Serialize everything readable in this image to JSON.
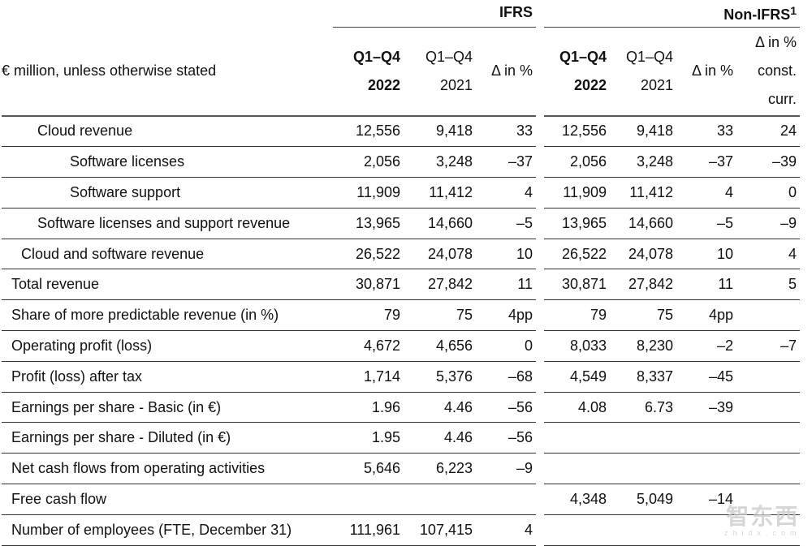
{
  "header": {
    "ifrs": "IFRS",
    "non_ifrs": "Non-IFRS",
    "non_ifrs_footnote": "1",
    "unit_label": "€ million, unless otherwise stated",
    "period_2022_line1": "Q1–Q4",
    "period_2022_line2": "2022",
    "period_2021_line1": "Q1–Q4",
    "period_2021_line2": "2021",
    "delta": "Δ in %",
    "delta_cc_line1": "Δ in %",
    "delta_cc_line2": "const.",
    "delta_cc_line3": "curr."
  },
  "rows": [
    {
      "label": "Cloud revenue",
      "indent": 2,
      "values": [
        "12,556",
        "9,418",
        "33",
        "12,556",
        "9,418",
        "33",
        "24"
      ]
    },
    {
      "label": "Software licenses",
      "indent": 3,
      "values": [
        "2,056",
        "3,248",
        "–37",
        "2,056",
        "3,248",
        "–37",
        "–39"
      ]
    },
    {
      "label": "Software support",
      "indent": 3,
      "values": [
        "11,909",
        "11,412",
        "4",
        "11,909",
        "11,412",
        "4",
        "0"
      ]
    },
    {
      "label": "Software licenses and support revenue",
      "indent": 2,
      "values": [
        "13,965",
        "14,660",
        "–5",
        "13,965",
        "14,660",
        "–5",
        "–9"
      ]
    },
    {
      "label": "Cloud and software revenue",
      "indent": 1,
      "values": [
        "26,522",
        "24,078",
        "10",
        "26,522",
        "24,078",
        "10",
        "4"
      ]
    },
    {
      "label": "Total revenue",
      "indent": 0,
      "values": [
        "30,871",
        "27,842",
        "11",
        "30,871",
        "27,842",
        "11",
        "5"
      ]
    },
    {
      "label": "Share of more predictable revenue (in %)",
      "indent": 0,
      "values": [
        "79",
        "75",
        "4pp",
        "79",
        "75",
        "4pp",
        ""
      ]
    },
    {
      "label": "Operating profit (loss)",
      "indent": 0,
      "values": [
        "4,672",
        "4,656",
        "0",
        "8,033",
        "8,230",
        "–2",
        "–7"
      ]
    },
    {
      "label": "Profit (loss) after tax",
      "indent": 0,
      "values": [
        "1,714",
        "5,376",
        "–68",
        "4,549",
        "8,337",
        "–45",
        ""
      ]
    },
    {
      "label": "Earnings per share - Basic (in €)",
      "indent": 0,
      "values": [
        "1.96",
        "4.46",
        "–56",
        "4.08",
        "6.73",
        "–39",
        ""
      ]
    },
    {
      "label": "Earnings per share - Diluted (in €)",
      "indent": 0,
      "values": [
        "1.95",
        "4.46",
        "–56",
        "",
        "",
        "",
        ""
      ]
    },
    {
      "label": "Net cash flows from operating activities",
      "indent": 0,
      "values": [
        "5,646",
        "6,223",
        "–9",
        "",
        "",
        "",
        ""
      ]
    },
    {
      "label": "Free cash flow",
      "indent": 0,
      "values": [
        "",
        "",
        "",
        "4,348",
        "5,049",
        "–14",
        ""
      ]
    },
    {
      "label": "Number of employees (FTE, December 31)",
      "indent": 0,
      "values": [
        "111,961",
        "107,415",
        "4",
        "",
        "",
        "",
        ""
      ]
    }
  ],
  "watermark": {
    "cn": "智东西",
    "en": "zhidx.com"
  }
}
